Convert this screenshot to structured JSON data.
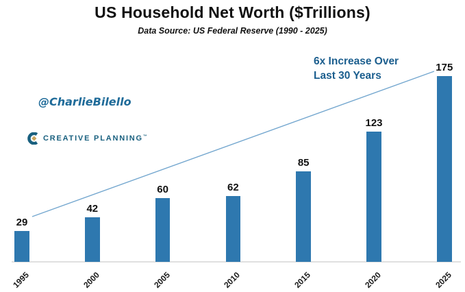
{
  "header": {
    "title": "US Household Net Worth ($Trillions)",
    "subtitle": "Data Source: US Federal Reserve (1990 - 2025)"
  },
  "watermarks": {
    "author_handle": "@CharlieBilello",
    "brand_name": "CREATIVE PLANNING",
    "brand_trademark": "™"
  },
  "annotation": {
    "line1": "6x Increase Over",
    "line2": "Last 30 Years"
  },
  "chart_data": {
    "type": "bar",
    "title": "US Household Net Worth ($Trillions)",
    "subtitle": "Data Source: US Federal Reserve (1990 - 2025)",
    "categories": [
      "1995",
      "2000",
      "2005",
      "2010",
      "2015",
      "2020",
      "2025"
    ],
    "values": [
      29,
      42,
      60,
      62,
      85,
      123,
      175
    ],
    "xlabel": "",
    "ylabel": "",
    "ylim": [
      0,
      185
    ],
    "grid": false,
    "data_labels": true,
    "legend": "none",
    "annotations": [
      {
        "type": "trendline",
        "label": "6x Increase Over Last 30 Years",
        "from_category": "1995",
        "to_category": "2025"
      }
    ]
  },
  "colors": {
    "bar": "#2E78AF",
    "trendline": "#74A7CF",
    "annotation_text": "#1B5E8E",
    "handle_text": "#1F6B99",
    "brand_teal": "#19607F",
    "brand_gold": "#C9A45B",
    "axis_line": "#E0E0E0",
    "title_text": "#111111"
  }
}
